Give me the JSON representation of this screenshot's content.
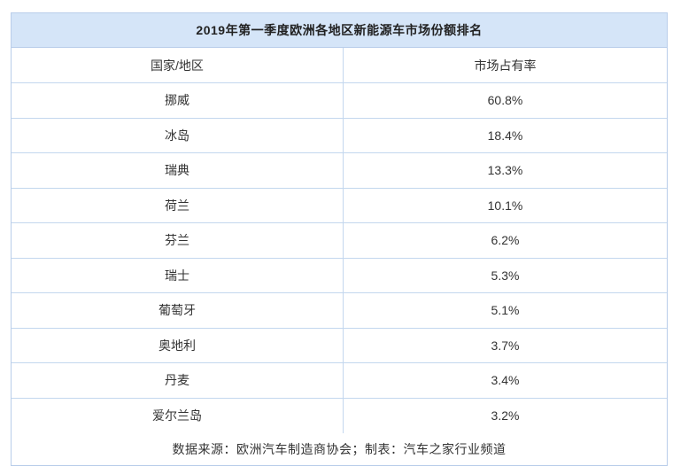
{
  "chart_data": {
    "type": "table",
    "title": "2019年第一季度欧洲各地区新能源车市场份额排名",
    "columns": [
      "国家/地区",
      "市场占有率"
    ],
    "rows": [
      [
        "挪威",
        "60.8%"
      ],
      [
        "冰岛",
        "18.4%"
      ],
      [
        "瑞典",
        "13.3%"
      ],
      [
        "荷兰",
        "10.1%"
      ],
      [
        "芬兰",
        "6.2%"
      ],
      [
        "瑞士",
        "5.3%"
      ],
      [
        "葡萄牙",
        "5.1%"
      ],
      [
        "奥地利",
        "3.7%"
      ],
      [
        "丹麦",
        "3.4%"
      ],
      [
        "爱尔兰岛",
        "3.2%"
      ]
    ],
    "footer": "数据来源：欧洲汽车制造商协会；制表：汽车之家行业频道",
    "layout": {
      "legend": "none",
      "grid": "light-blue row borders",
      "header_background": "#d5e5f8"
    }
  },
  "colors": {
    "band_background": "#d5e5f8",
    "border": "#c3d7ee",
    "outer_border": "#b9cdea",
    "title_text": "#222222",
    "cell_text": "#333333",
    "page_background": "#ffffff"
  }
}
